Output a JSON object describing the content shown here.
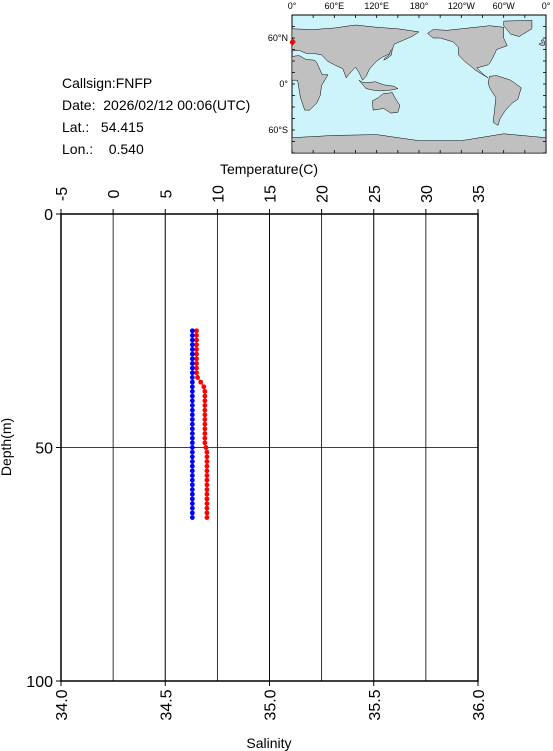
{
  "station": {
    "callsign_label": "Callsign:FNFP",
    "date_label": "Date:  2026/02/12 00:06(UTC)",
    "lat_label": "Lat.:   54.415",
    "lon_label": "Lon.:    0.540"
  },
  "map": {
    "top_lon_labels": [
      "0°",
      "60°E",
      "120°E",
      "180°",
      "120°W",
      "60°W",
      "0°"
    ],
    "left_lat_labels": [
      "60°N",
      "0°",
      "60°S"
    ],
    "ocean_color": "#cdf3fb",
    "land_color": "#c0c0c0",
    "marker_color": "#ff0000",
    "marker_lat": 54.415,
    "marker_lon": 0.54
  },
  "chart_data": {
    "type": "scatter",
    "title": "",
    "top_axis": {
      "label": "Temperature(C)",
      "range": [
        -5,
        35
      ],
      "ticks": [
        -5,
        0,
        5,
        10,
        15,
        20,
        25,
        30,
        35
      ],
      "tick_labels": [
        "-5",
        "0",
        "5",
        "10",
        "15",
        "20",
        "25",
        "30",
        "35"
      ]
    },
    "bottom_axis": {
      "label": "Salinity",
      "range": [
        34.0,
        36.0
      ],
      "ticks": [
        34.0,
        34.5,
        35.0,
        35.5,
        36.0
      ],
      "tick_labels": [
        "34.0",
        "34.5",
        "35.0",
        "35.5",
        "36.0"
      ]
    },
    "y_axis": {
      "label": "Depth(m)",
      "range": [
        0,
        100
      ],
      "inverted": true,
      "ticks": [
        0,
        50,
        100
      ],
      "tick_labels": [
        "0",
        "50",
        "100"
      ]
    },
    "grid": true,
    "series": [
      {
        "color": "#ff0000",
        "axis": "temperature",
        "points": [
          [
            8.0,
            25
          ],
          [
            8.0,
            26
          ],
          [
            8.0,
            27
          ],
          [
            8.0,
            28
          ],
          [
            8.0,
            29
          ],
          [
            8.0,
            30
          ],
          [
            8.0,
            31
          ],
          [
            8.0,
            32
          ],
          [
            8.0,
            33
          ],
          [
            8.0,
            34
          ],
          [
            8.1,
            35
          ],
          [
            8.4,
            36
          ],
          [
            8.7,
            37
          ],
          [
            8.8,
            38
          ],
          [
            8.8,
            39
          ],
          [
            8.8,
            40
          ],
          [
            8.8,
            41
          ],
          [
            8.8,
            42
          ],
          [
            8.8,
            43
          ],
          [
            8.8,
            44
          ],
          [
            8.8,
            45
          ],
          [
            8.8,
            46
          ],
          [
            8.8,
            47
          ],
          [
            8.8,
            48
          ],
          [
            8.8,
            49
          ],
          [
            8.9,
            50
          ],
          [
            9.0,
            51
          ],
          [
            9.0,
            52
          ],
          [
            9.0,
            53
          ],
          [
            9.0,
            54
          ],
          [
            9.0,
            55
          ],
          [
            9.0,
            56
          ],
          [
            9.0,
            57
          ],
          [
            9.0,
            58
          ],
          [
            9.0,
            59
          ],
          [
            9.0,
            60
          ],
          [
            9.0,
            61
          ],
          [
            9.0,
            62
          ],
          [
            9.0,
            63
          ],
          [
            9.0,
            64
          ],
          [
            9.0,
            65
          ]
        ]
      },
      {
        "color": "#0000ff",
        "axis": "salinity",
        "points": [
          [
            34.63,
            25
          ],
          [
            34.63,
            26
          ],
          [
            34.63,
            27
          ],
          [
            34.63,
            28
          ],
          [
            34.63,
            29
          ],
          [
            34.63,
            30
          ],
          [
            34.63,
            31
          ],
          [
            34.63,
            32
          ],
          [
            34.63,
            33
          ],
          [
            34.63,
            34
          ],
          [
            34.63,
            35
          ],
          [
            34.63,
            36
          ],
          [
            34.63,
            37
          ],
          [
            34.63,
            38
          ],
          [
            34.63,
            39
          ],
          [
            34.63,
            40
          ],
          [
            34.63,
            41
          ],
          [
            34.63,
            42
          ],
          [
            34.63,
            43
          ],
          [
            34.63,
            44
          ],
          [
            34.63,
            45
          ],
          [
            34.63,
            46
          ],
          [
            34.63,
            47
          ],
          [
            34.63,
            48
          ],
          [
            34.63,
            49
          ],
          [
            34.63,
            50
          ],
          [
            34.63,
            51
          ],
          [
            34.63,
            52
          ],
          [
            34.63,
            53
          ],
          [
            34.63,
            54
          ],
          [
            34.63,
            55
          ],
          [
            34.63,
            56
          ],
          [
            34.63,
            57
          ],
          [
            34.63,
            58
          ],
          [
            34.63,
            59
          ],
          [
            34.63,
            60
          ],
          [
            34.63,
            61
          ],
          [
            34.63,
            62
          ],
          [
            34.63,
            63
          ],
          [
            34.63,
            64
          ],
          [
            34.63,
            65
          ]
        ]
      }
    ]
  }
}
